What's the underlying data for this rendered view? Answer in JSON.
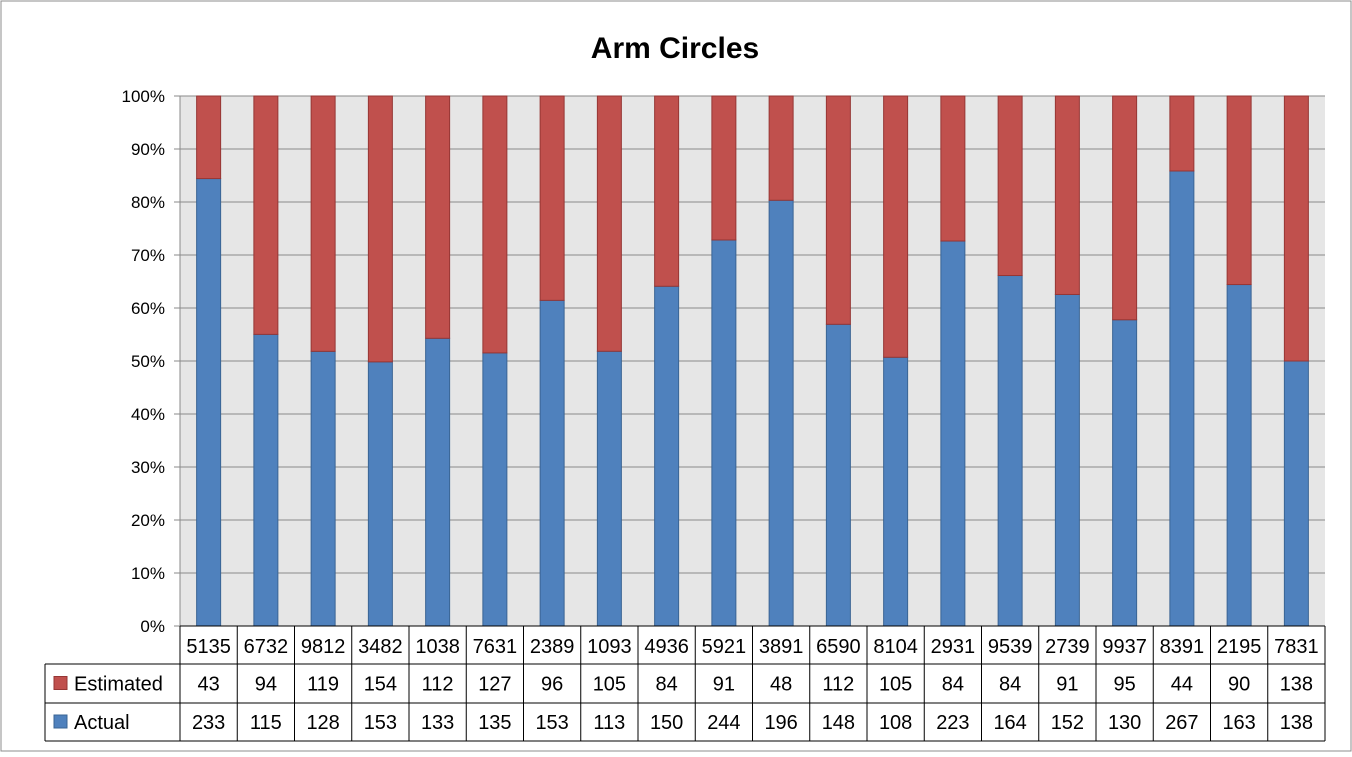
{
  "chart_data": {
    "type": "bar",
    "stacking": "percent",
    "title": "Arm Circles",
    "categories": [
      "5135",
      "6732",
      "9812",
      "3482",
      "1038",
      "7631",
      "2389",
      "1093",
      "4936",
      "5921",
      "3891",
      "6590",
      "8104",
      "2931",
      "9539",
      "2739",
      "9937",
      "8391",
      "2195",
      "7831"
    ],
    "series": [
      {
        "name": "Actual",
        "values": [
          233,
          115,
          128,
          153,
          133,
          135,
          153,
          113,
          150,
          244,
          196,
          148,
          108,
          223,
          164,
          152,
          130,
          267,
          163,
          138
        ],
        "color": "#4f81bd"
      },
      {
        "name": "Estimated",
        "values": [
          43,
          94,
          119,
          154,
          112,
          127,
          96,
          105,
          84,
          91,
          48,
          112,
          105,
          84,
          84,
          91,
          95,
          44,
          90,
          138
        ],
        "color": "#c0504d"
      }
    ],
    "y_tick_labels": [
      "0%",
      "10%",
      "20%",
      "30%",
      "40%",
      "50%",
      "60%",
      "70%",
      "80%",
      "90%",
      "100%"
    ],
    "ylim": [
      0,
      100
    ],
    "grid": true,
    "plot_background": "#e6e6e6",
    "legend": "data-table"
  }
}
